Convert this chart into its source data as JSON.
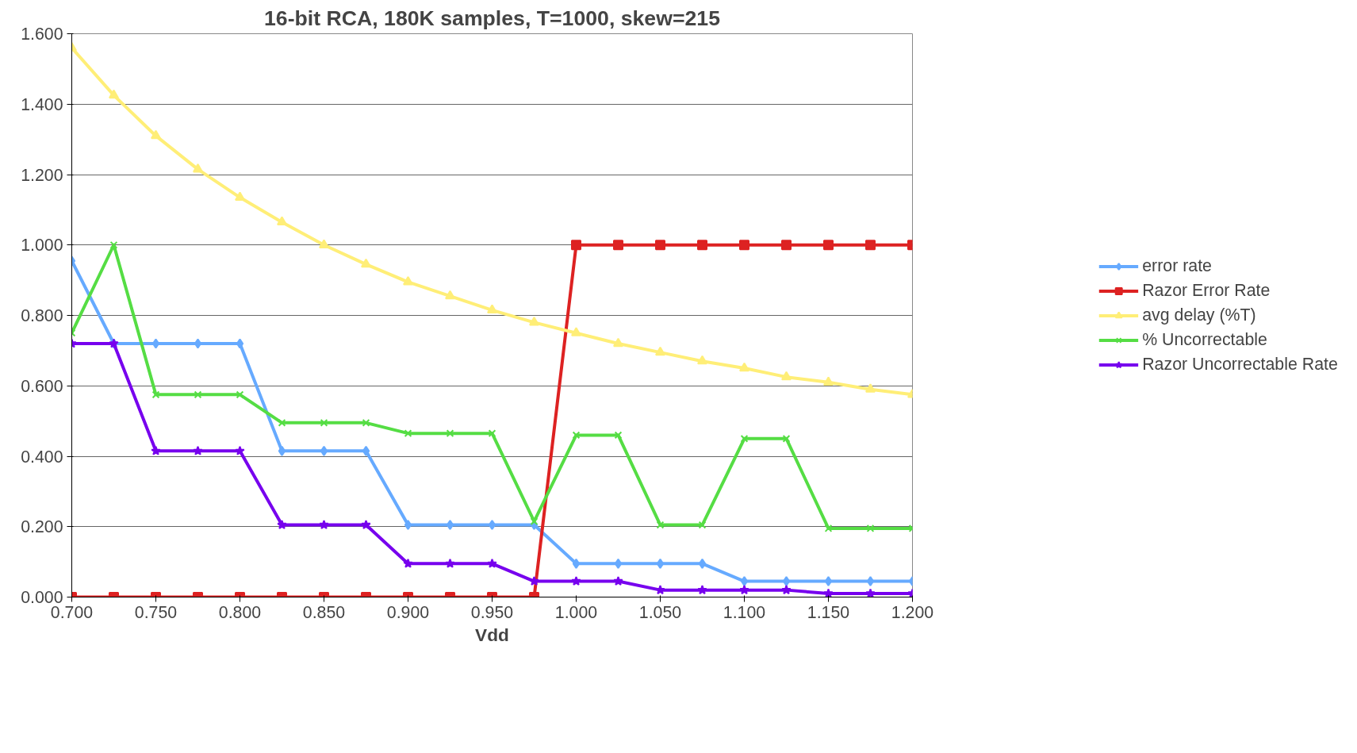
{
  "chart_data": {
    "type": "line",
    "title": "16-bit RCA, 180K samples, T=1000, skew=215",
    "xlabel": "Vdd",
    "x": [
      0.7,
      0.725,
      0.75,
      0.775,
      0.8,
      0.825,
      0.85,
      0.875,
      0.9,
      0.925,
      0.95,
      0.975,
      1.0,
      1.025,
      1.05,
      1.075,
      1.1,
      1.125,
      1.15,
      1.175,
      1.2
    ],
    "series": [
      {
        "name": "error rate",
        "color": "#66aaff",
        "marker": "diamond",
        "values": [
          0.955,
          0.72,
          0.72,
          0.72,
          0.72,
          0.415,
          0.415,
          0.415,
          0.205,
          0.205,
          0.205,
          0.205,
          0.095,
          0.095,
          0.095,
          0.095,
          0.045,
          0.045,
          0.045,
          0.045,
          0.045
        ]
      },
      {
        "name": "Razor Error Rate",
        "color": "#dd2222",
        "marker": "square",
        "values": [
          0,
          0,
          0,
          0,
          0,
          0,
          0,
          0,
          0,
          0,
          0,
          0,
          1,
          1,
          1,
          1,
          1,
          1,
          1,
          1,
          1
        ]
      },
      {
        "name": "avg delay (%T)",
        "color": "#ffee77",
        "marker": "triangle",
        "values": [
          1.56,
          1.425,
          1.31,
          1.215,
          1.135,
          1.065,
          1.0,
          0.945,
          0.895,
          0.855,
          0.815,
          0.78,
          0.75,
          0.72,
          0.695,
          0.67,
          0.65,
          0.625,
          0.61,
          0.59,
          0.575
        ]
      },
      {
        "name": "% Uncorrectable",
        "color": "#55dd44",
        "marker": "cross",
        "values": [
          0.75,
          1.0,
          0.575,
          0.575,
          0.575,
          0.495,
          0.495,
          0.495,
          0.465,
          0.465,
          0.465,
          0.215,
          0.46,
          0.46,
          0.205,
          0.205,
          0.45,
          0.45,
          0.195,
          0.195,
          0.195
        ]
      },
      {
        "name": "Razor Uncorrectable Rate",
        "color": "#7700ee",
        "marker": "star",
        "values": [
          0.72,
          0.72,
          0.415,
          0.415,
          0.415,
          0.205,
          0.205,
          0.205,
          0.095,
          0.095,
          0.095,
          0.045,
          0.045,
          0.045,
          0.02,
          0.02,
          0.02,
          0.02,
          0.01,
          0.01,
          0.01
        ]
      }
    ],
    "xlim": [
      0.7,
      1.2
    ],
    "xticks": [
      {
        "value": 0.7,
        "label": "0.700"
      },
      {
        "value": 0.75,
        "label": "0.750"
      },
      {
        "value": 0.8,
        "label": "0.800"
      },
      {
        "value": 0.85,
        "label": "0.850"
      },
      {
        "value": 0.9,
        "label": "0.900"
      },
      {
        "value": 0.95,
        "label": "0.950"
      },
      {
        "value": 1.0,
        "label": "1.000"
      },
      {
        "value": 1.05,
        "label": "1.050"
      },
      {
        "value": 1.1,
        "label": "1.100"
      },
      {
        "value": 1.15,
        "label": "1.150"
      },
      {
        "value": 1.2,
        "label": "1.200"
      }
    ],
    "ylim": [
      0,
      1.6
    ],
    "yticks": [
      {
        "value": 0,
        "label": "0.000"
      },
      {
        "value": 0.2,
        "label": "0.200"
      },
      {
        "value": 0.4,
        "label": "0.400"
      },
      {
        "value": 0.6,
        "label": "0.600"
      },
      {
        "value": 0.8,
        "label": "0.800"
      },
      {
        "value": 1.0,
        "label": "1.000"
      },
      {
        "value": 1.2,
        "label": "1.200"
      },
      {
        "value": 1.4,
        "label": "1.400"
      },
      {
        "value": 1.6,
        "label": "1.600"
      }
    ],
    "grid": "y",
    "legend": "right",
    "line_style": "solid"
  }
}
